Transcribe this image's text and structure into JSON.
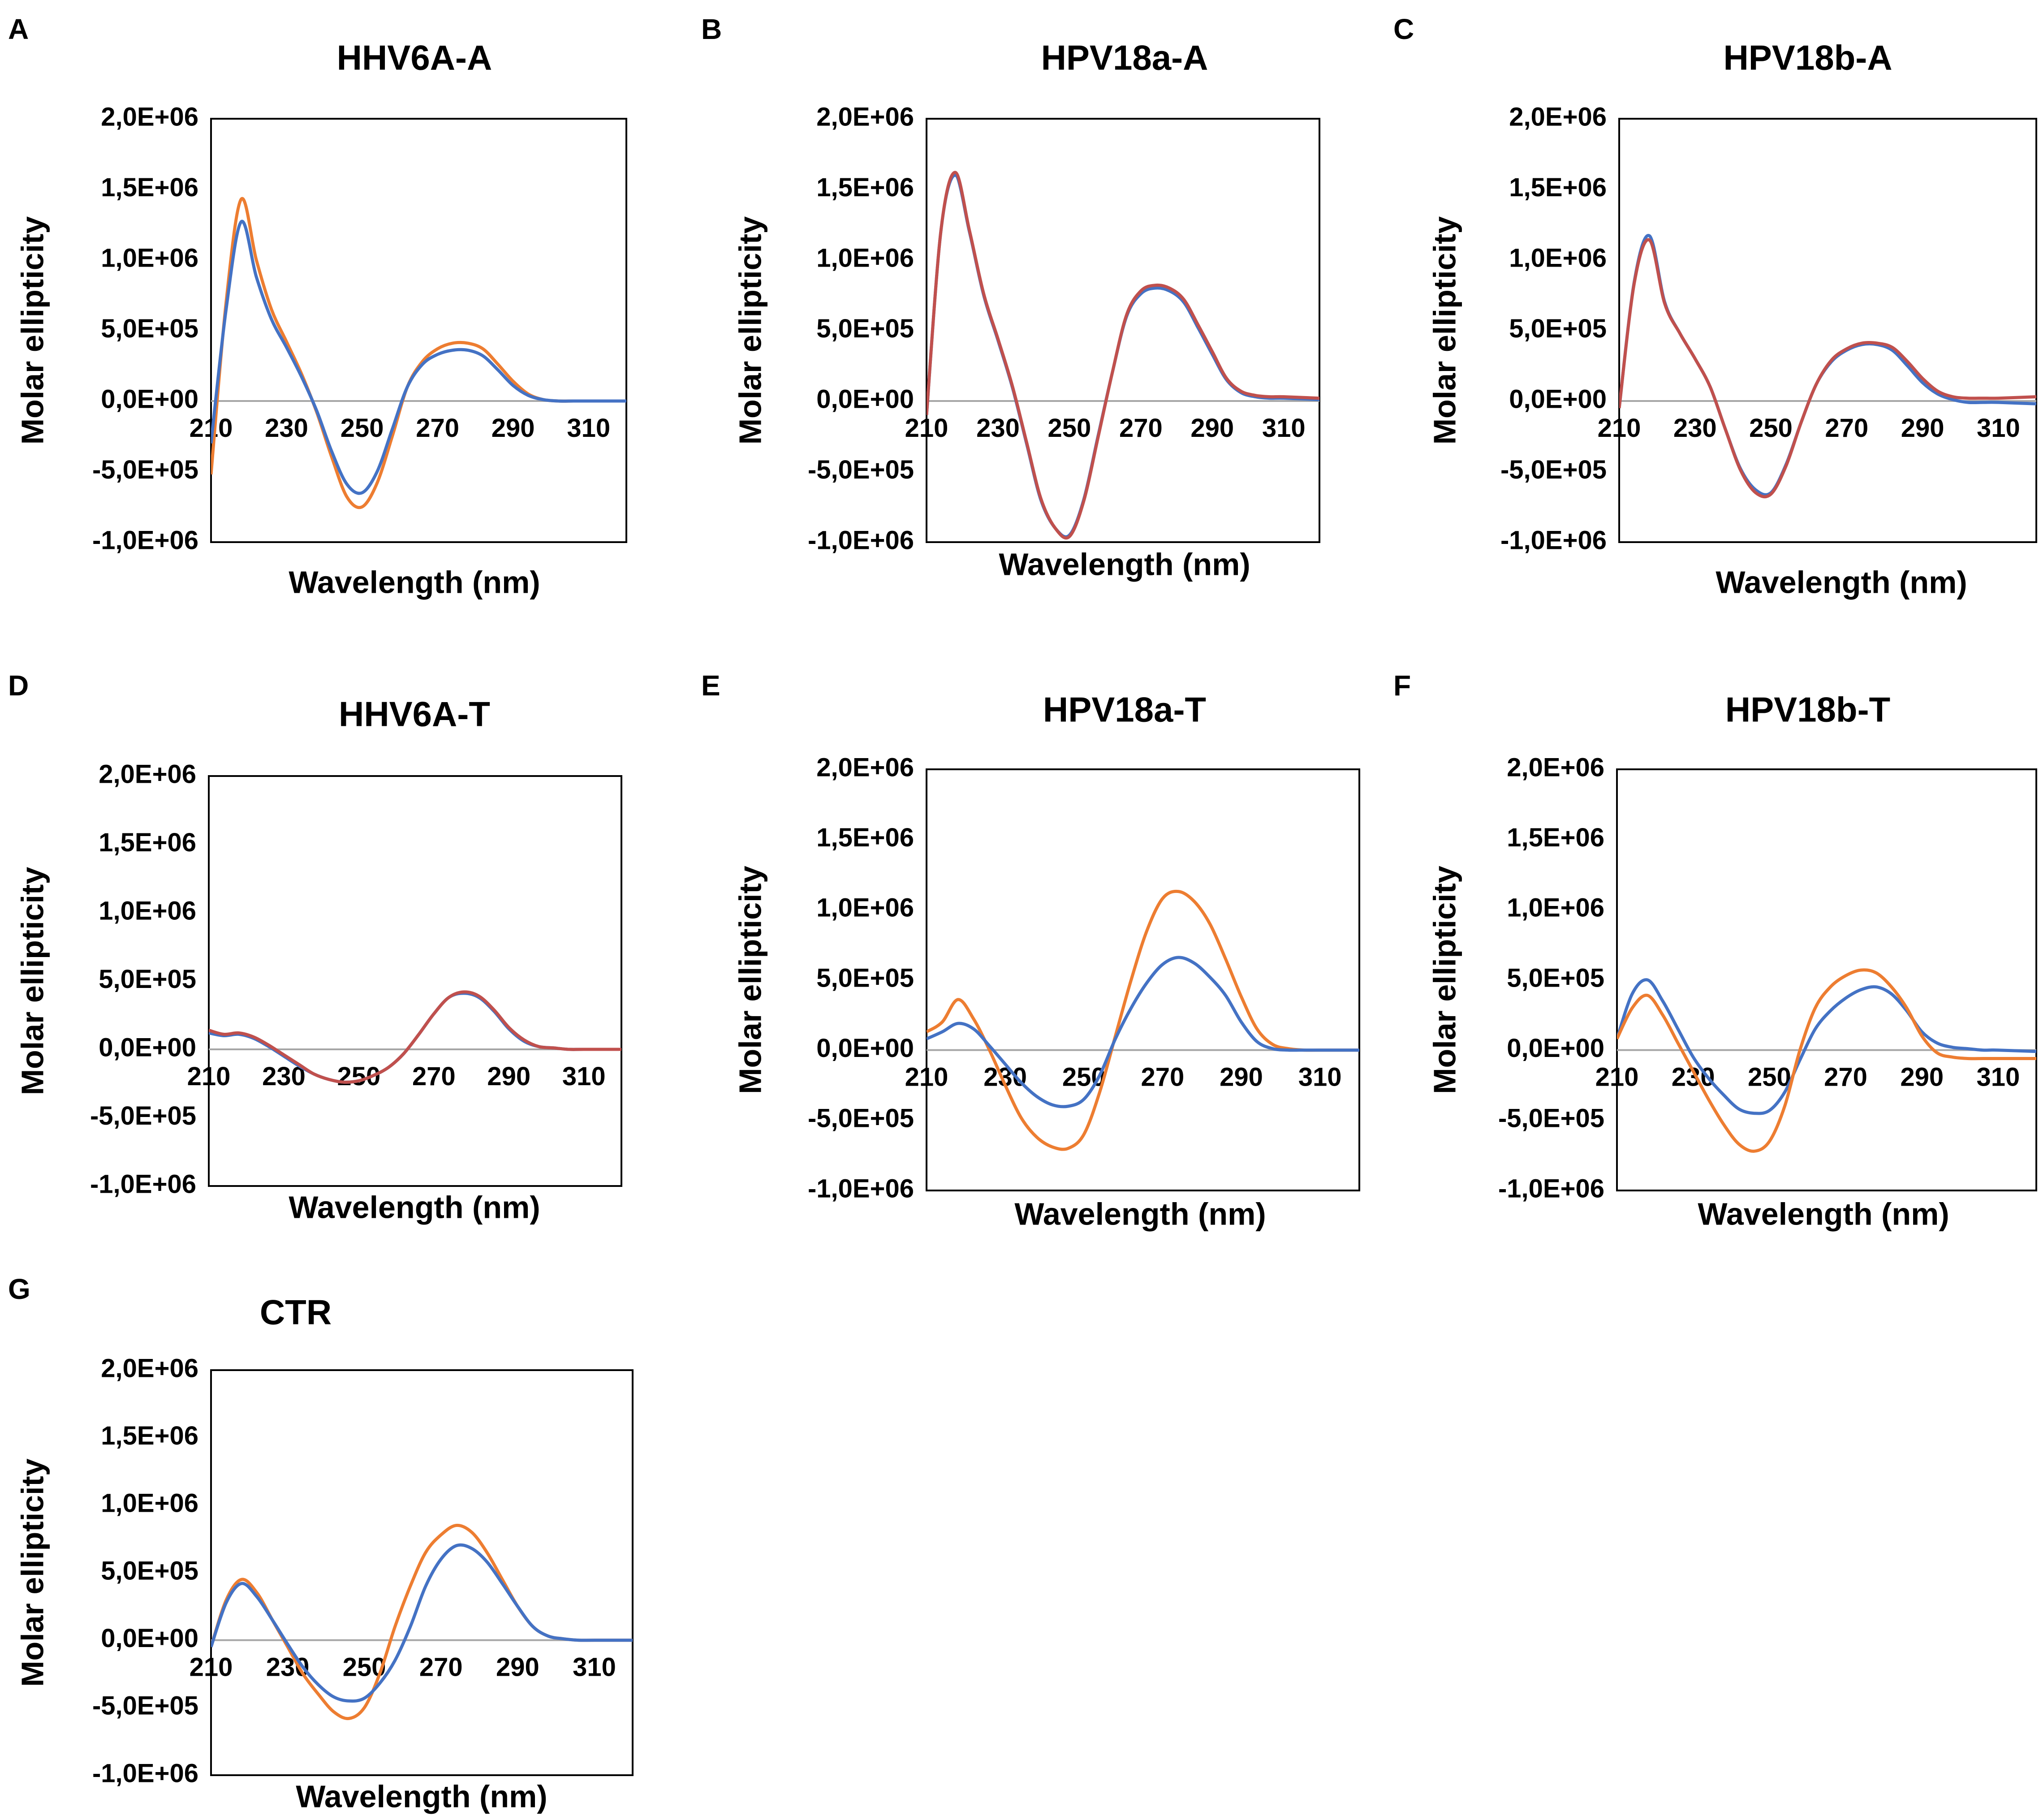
{
  "figure": {
    "x_axis_label": "Wavelength (nm)",
    "y_axis_label": "Molar ellipticity"
  },
  "colors": {
    "orange": "#ed7d31",
    "blue": "#4472c4",
    "red": "#c0504d",
    "axis": "#000000",
    "zero_line": "#a6a6a6"
  },
  "chart_data": [
    {
      "panel": "A",
      "title": "HHV6A-A",
      "type": "line",
      "xlim": [
        210,
        320
      ],
      "ylim": [
        -1000000,
        2000000
      ],
      "x_ticks": [
        "210",
        "230",
        "250",
        "270",
        "290",
        "310"
      ],
      "y_ticks": [
        "2,0E+06",
        "1,5E+06",
        "1,0E+06",
        "5,0E+05",
        "0,0E+00",
        "-5,0E+05",
        "-1,0E+06"
      ],
      "xlabel": "Wavelength (nm)",
      "ylabel": "Molar ellipticity",
      "series": [
        {
          "color": "orange",
          "x": [
            210,
            214,
            218,
            222,
            226,
            230,
            234,
            238,
            242,
            246,
            250,
            254,
            258,
            262,
            266,
            270,
            274,
            278,
            282,
            286,
            290,
            294,
            298,
            302,
            306,
            310,
            320
          ],
          "y": [
            -520000,
            700000,
            1430000,
            1000000,
            650000,
            420000,
            190000,
            -80000,
            -400000,
            -680000,
            -750000,
            -580000,
            -250000,
            100000,
            280000,
            370000,
            410000,
            410000,
            370000,
            260000,
            140000,
            50000,
            10000,
            0,
            0,
            0,
            0
          ]
        },
        {
          "color": "blue",
          "x": [
            210,
            214,
            218,
            222,
            226,
            230,
            234,
            238,
            242,
            246,
            250,
            254,
            258,
            262,
            266,
            270,
            274,
            278,
            282,
            286,
            290,
            294,
            298,
            302,
            306,
            310,
            320
          ],
          "y": [
            -300000,
            650000,
            1270000,
            880000,
            580000,
            380000,
            170000,
            -70000,
            -360000,
            -590000,
            -650000,
            -500000,
            -200000,
            100000,
            260000,
            330000,
            360000,
            360000,
            320000,
            220000,
            110000,
            40000,
            10000,
            0,
            0,
            0,
            0
          ]
        }
      ]
    },
    {
      "panel": "B",
      "title": "HPV18a-A",
      "type": "line",
      "xlim": [
        210,
        320
      ],
      "ylim": [
        -1000000,
        2000000
      ],
      "x_ticks": [
        "210",
        "230",
        "250",
        "270",
        "290",
        "310"
      ],
      "y_ticks": [
        "2,0E+06",
        "1,5E+06",
        "1,0E+06",
        "5,0E+05",
        "0,0E+00",
        "-5,0E+05",
        "-1,0E+06"
      ],
      "xlabel": "Wavelength (nm)",
      "ylabel": "Molar ellipticity",
      "series": [
        {
          "color": "blue",
          "x": [
            210,
            214,
            218,
            222,
            226,
            230,
            234,
            238,
            242,
            246,
            250,
            254,
            258,
            262,
            266,
            270,
            274,
            278,
            282,
            286,
            290,
            294,
            298,
            302,
            306,
            310,
            320
          ],
          "y": [
            -100000,
            1200000,
            1600000,
            1200000,
            750000,
            430000,
            100000,
            -300000,
            -700000,
            -900000,
            -950000,
            -700000,
            -250000,
            200000,
            600000,
            760000,
            800000,
            780000,
            700000,
            520000,
            330000,
            150000,
            60000,
            30000,
            20000,
            20000,
            10000
          ]
        },
        {
          "color": "red",
          "x": [
            210,
            214,
            218,
            222,
            226,
            230,
            234,
            238,
            242,
            246,
            250,
            254,
            258,
            262,
            266,
            270,
            274,
            278,
            282,
            286,
            290,
            294,
            298,
            302,
            306,
            310,
            320
          ],
          "y": [
            -100000,
            1200000,
            1620000,
            1210000,
            760000,
            440000,
            110000,
            -290000,
            -690000,
            -900000,
            -960000,
            -710000,
            -260000,
            200000,
            610000,
            780000,
            820000,
            800000,
            720000,
            540000,
            350000,
            160000,
            70000,
            40000,
            30000,
            30000,
            20000
          ]
        }
      ]
    },
    {
      "panel": "C",
      "title": "HPV18b-A",
      "type": "line",
      "xlim": [
        210,
        320
      ],
      "ylim": [
        -1000000,
        2000000
      ],
      "x_ticks": [
        "210",
        "230",
        "250",
        "270",
        "290",
        "310"
      ],
      "y_ticks": [
        "2,0E+06",
        "1,5E+06",
        "1,0E+06",
        "5,0E+05",
        "0,0E+00",
        "-5,0E+05",
        "-1,0E+06"
      ],
      "xlabel": "Wavelength (nm)",
      "ylabel": "Molar ellipticity",
      "series": [
        {
          "color": "blue",
          "x": [
            210,
            214,
            218,
            222,
            226,
            230,
            234,
            238,
            242,
            246,
            250,
            254,
            258,
            262,
            266,
            270,
            274,
            278,
            282,
            286,
            290,
            294,
            298,
            302,
            306,
            310,
            320
          ],
          "y": [
            -50000,
            850000,
            1170000,
            700000,
            480000,
            300000,
            100000,
            -200000,
            -480000,
            -630000,
            -650000,
            -450000,
            -150000,
            120000,
            280000,
            360000,
            400000,
            400000,
            360000,
            250000,
            130000,
            50000,
            10000,
            -10000,
            -10000,
            -10000,
            -20000
          ]
        },
        {
          "color": "red",
          "x": [
            210,
            214,
            218,
            222,
            226,
            230,
            234,
            238,
            242,
            246,
            250,
            254,
            258,
            262,
            266,
            270,
            274,
            278,
            282,
            286,
            290,
            294,
            298,
            302,
            306,
            310,
            320
          ],
          "y": [
            -50000,
            840000,
            1140000,
            690000,
            480000,
            300000,
            100000,
            -200000,
            -490000,
            -650000,
            -660000,
            -460000,
            -150000,
            120000,
            290000,
            370000,
            410000,
            410000,
            380000,
            280000,
            160000,
            70000,
            30000,
            20000,
            20000,
            20000,
            30000
          ]
        }
      ]
    },
    {
      "panel": "D",
      "title": "HHV6A-T",
      "type": "line",
      "xlim": [
        210,
        320
      ],
      "ylim": [
        -1000000,
        2000000
      ],
      "x_ticks": [
        "210",
        "230",
        "250",
        "270",
        "290",
        "310"
      ],
      "y_ticks": [
        "2,0E+06",
        "1,5E+06",
        "1,0E+06",
        "5,0E+05",
        "0,0E+00",
        "-5,0E+05",
        "-1,0E+06"
      ],
      "xlabel": "Wavelength (nm)",
      "ylabel": "Molar ellipticity",
      "series": [
        {
          "color": "blue",
          "x": [
            210,
            214,
            218,
            222,
            226,
            230,
            234,
            238,
            242,
            246,
            250,
            254,
            258,
            262,
            266,
            270,
            274,
            278,
            282,
            286,
            290,
            294,
            298,
            302,
            306,
            310,
            320
          ],
          "y": [
            120000,
            100000,
            110000,
            80000,
            20000,
            -50000,
            -120000,
            -180000,
            -220000,
            -240000,
            -230000,
            -190000,
            -130000,
            -30000,
            110000,
            260000,
            380000,
            410000,
            380000,
            280000,
            150000,
            60000,
            20000,
            10000,
            0,
            0,
            0
          ]
        },
        {
          "color": "red",
          "x": [
            210,
            214,
            218,
            222,
            226,
            230,
            234,
            238,
            242,
            246,
            250,
            254,
            258,
            262,
            266,
            270,
            274,
            278,
            282,
            286,
            290,
            294,
            298,
            302,
            306,
            310,
            320
          ],
          "y": [
            140000,
            110000,
            120000,
            90000,
            30000,
            -40000,
            -110000,
            -180000,
            -220000,
            -240000,
            -230000,
            -190000,
            -130000,
            -30000,
            110000,
            260000,
            380000,
            420000,
            390000,
            290000,
            160000,
            70000,
            20000,
            10000,
            0,
            0,
            0
          ]
        }
      ]
    },
    {
      "panel": "E",
      "title": "HPV18a-T",
      "type": "line",
      "xlim": [
        210,
        320
      ],
      "ylim": [
        -1000000,
        2000000
      ],
      "x_ticks": [
        "210",
        "230",
        "250",
        "270",
        "290",
        "310"
      ],
      "y_ticks": [
        "2,0E+06",
        "1,5E+06",
        "1,0E+06",
        "5,0E+05",
        "0,0E+00",
        "-5,0E+05",
        "-1,0E+06"
      ],
      "xlabel": "Wavelength (nm)",
      "ylabel": "Molar ellipticity",
      "series": [
        {
          "color": "orange",
          "x": [
            210,
            214,
            218,
            222,
            226,
            230,
            234,
            238,
            242,
            246,
            250,
            254,
            258,
            262,
            266,
            270,
            274,
            278,
            282,
            286,
            290,
            294,
            298,
            302,
            306,
            310,
            320
          ],
          "y": [
            130000,
            200000,
            360000,
            220000,
            0,
            -250000,
            -480000,
            -620000,
            -690000,
            -700000,
            -600000,
            -300000,
            100000,
            500000,
            850000,
            1080000,
            1130000,
            1060000,
            900000,
            650000,
            380000,
            150000,
            40000,
            10000,
            0,
            0,
            0
          ]
        },
        {
          "color": "blue",
          "x": [
            210,
            214,
            218,
            222,
            226,
            230,
            234,
            238,
            242,
            246,
            250,
            254,
            258,
            262,
            266,
            270,
            274,
            278,
            282,
            286,
            290,
            294,
            298,
            302,
            306,
            310,
            320
          ],
          "y": [
            80000,
            130000,
            190000,
            150000,
            30000,
            -100000,
            -230000,
            -330000,
            -390000,
            -400000,
            -350000,
            -180000,
            80000,
            300000,
            480000,
            610000,
            660000,
            620000,
            520000,
            390000,
            200000,
            60000,
            10000,
            0,
            0,
            0,
            0
          ]
        }
      ]
    },
    {
      "panel": "F",
      "title": "HPV18b-T",
      "type": "line",
      "xlim": [
        210,
        320
      ],
      "ylim": [
        -1000000,
        2000000
      ],
      "x_ticks": [
        "210",
        "230",
        "250",
        "270",
        "290",
        "310"
      ],
      "y_ticks": [
        "2,0E+06",
        "1,5E+06",
        "1,0E+06",
        "5,0E+05",
        "0,0E+00",
        "-5,0E+05",
        "-1,0E+06"
      ],
      "xlabel": "Wavelength (nm)",
      "ylabel": "Molar ellipticity",
      "series": [
        {
          "color": "blue",
          "x": [
            210,
            214,
            218,
            222,
            226,
            230,
            234,
            238,
            242,
            246,
            250,
            254,
            258,
            262,
            266,
            270,
            274,
            278,
            282,
            286,
            290,
            294,
            298,
            302,
            306,
            310,
            320
          ],
          "y": [
            80000,
            400000,
            500000,
            350000,
            150000,
            -50000,
            -200000,
            -320000,
            -420000,
            -450000,
            -430000,
            -300000,
            -70000,
            150000,
            280000,
            370000,
            430000,
            450000,
            400000,
            280000,
            130000,
            50000,
            20000,
            10000,
            0,
            0,
            -10000
          ]
        },
        {
          "color": "orange",
          "x": [
            210,
            214,
            218,
            222,
            226,
            230,
            234,
            238,
            242,
            246,
            250,
            254,
            258,
            262,
            266,
            270,
            274,
            278,
            282,
            286,
            290,
            294,
            298,
            302,
            306,
            310,
            320
          ],
          "y": [
            80000,
            300000,
            390000,
            250000,
            50000,
            -150000,
            -350000,
            -530000,
            -670000,
            -720000,
            -650000,
            -400000,
            0,
            300000,
            450000,
            530000,
            570000,
            550000,
            450000,
            300000,
            100000,
            -20000,
            -50000,
            -60000,
            -60000,
            -60000,
            -60000
          ]
        }
      ]
    },
    {
      "panel": "G",
      "title": "CTR",
      "type": "line",
      "xlim": [
        210,
        320
      ],
      "ylim": [
        -1000000,
        2000000
      ],
      "x_ticks": [
        "210",
        "230",
        "250",
        "270",
        "290",
        "310"
      ],
      "y_ticks": [
        "2,0E+06",
        "1,5E+06",
        "1,0E+06",
        "5,0E+05",
        "0,0E+00",
        "-5,0E+05",
        "-1,0E+06"
      ],
      "xlabel": "Wavelength (nm)",
      "ylabel": "Molar ellipticity",
      "series": [
        {
          "color": "orange",
          "x": [
            210,
            214,
            218,
            222,
            226,
            230,
            234,
            238,
            242,
            246,
            250,
            254,
            258,
            262,
            266,
            270,
            274,
            278,
            282,
            286,
            290,
            294,
            298,
            302,
            306,
            310,
            320
          ],
          "y": [
            -50000,
            300000,
            450000,
            350000,
            150000,
            -50000,
            -250000,
            -400000,
            -530000,
            -580000,
            -500000,
            -250000,
            100000,
            400000,
            650000,
            780000,
            850000,
            800000,
            650000,
            450000,
            250000,
            100000,
            30000,
            10000,
            0,
            0,
            0
          ]
        },
        {
          "color": "blue",
          "x": [
            210,
            214,
            218,
            222,
            226,
            230,
            234,
            238,
            242,
            246,
            250,
            254,
            258,
            262,
            266,
            270,
            274,
            278,
            282,
            286,
            290,
            294,
            298,
            302,
            306,
            310,
            320
          ],
          "y": [
            -50000,
            280000,
            420000,
            320000,
            150000,
            -30000,
            -200000,
            -330000,
            -420000,
            -450000,
            -430000,
            -320000,
            -150000,
            100000,
            400000,
            600000,
            700000,
            680000,
            580000,
            420000,
            250000,
            100000,
            30000,
            10000,
            0,
            0,
            0
          ]
        }
      ]
    }
  ]
}
